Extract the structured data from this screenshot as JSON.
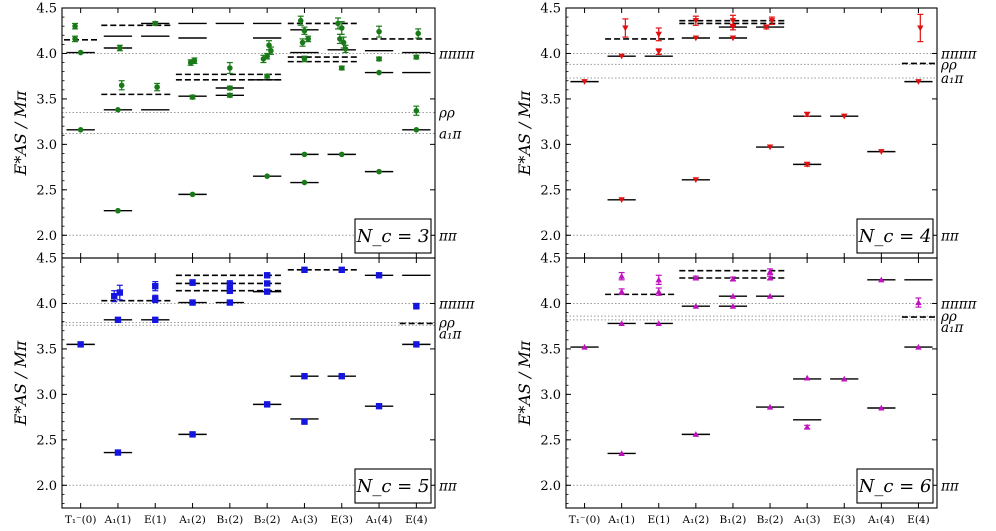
{
  "figure": {
    "ylabel": "E*AS / Mπ",
    "ytick_labels": [
      "2.0",
      "2.5",
      "3.0",
      "3.5",
      "4.0",
      "4.5"
    ],
    "x_categories": [
      "T₁⁻(0)",
      "A₁(1)",
      "E(1)",
      "A₁(2)",
      "B₁(2)",
      "B₂(2)",
      "A₁(3)",
      "E(3)",
      "A₁(4)",
      "E(4)"
    ]
  },
  "chart_data": [
    {
      "type": "scatter",
      "panel": "Nc=3",
      "legend": "N_c = 3",
      "color": "#1a7a1a",
      "marker": "circle",
      "ylim": [
        1.75,
        4.5
      ],
      "ref_lines": [
        {
          "label": "ππππ",
          "value": 4.0
        },
        {
          "label": "ρρ",
          "value": 3.35
        },
        {
          "label": "a₁π",
          "value": 3.12
        },
        {
          "label": "ππ",
          "value": 2.0
        }
      ],
      "levels": [
        {
          "x": 0,
          "y": 4.01
        },
        {
          "x": 0,
          "y": 3.16
        },
        {
          "x": 1,
          "y": 4.19
        },
        {
          "x": 1,
          "y": 4.06
        },
        {
          "x": 1,
          "y": 3.38
        },
        {
          "x": 1,
          "y": 2.27
        },
        {
          "x": 2,
          "y": 4.33
        },
        {
          "x": 2,
          "y": 4.19
        },
        {
          "x": 2,
          "y": 3.38
        },
        {
          "x": 3,
          "y": 4.33
        },
        {
          "x": 3,
          "y": 4.17
        },
        {
          "x": 3,
          "y": 3.53
        },
        {
          "x": 3,
          "y": 2.45
        },
        {
          "x": 4,
          "y": 4.33
        },
        {
          "x": 4,
          "y": 3.62
        },
        {
          "x": 4,
          "y": 3.54
        },
        {
          "x": 5,
          "y": 4.33
        },
        {
          "x": 5,
          "y": 4.17
        },
        {
          "x": 5,
          "y": 3.71
        },
        {
          "x": 5,
          "y": 2.65
        },
        {
          "x": 6,
          "y": 4.26
        },
        {
          "x": 6,
          "y": 4.01
        },
        {
          "x": 6,
          "y": 2.89
        },
        {
          "x": 6,
          "y": 2.58
        },
        {
          "x": 7,
          "y": 4.04
        },
        {
          "x": 7,
          "y": 2.89
        },
        {
          "x": 8,
          "y": 4.03
        },
        {
          "x": 8,
          "y": 3.79
        },
        {
          "x": 8,
          "y": 2.7
        },
        {
          "x": 9,
          "y": 4.01
        },
        {
          "x": 9,
          "y": 3.79
        },
        {
          "x": 9,
          "y": 3.16
        }
      ],
      "dashed_levels": [
        {
          "x0": 0,
          "x1": 1,
          "y": 4.15
        },
        {
          "x0": 1,
          "x1": 3,
          "y": 4.31
        },
        {
          "x0": 1,
          "x1": 3,
          "y": 3.55
        },
        {
          "x0": 3,
          "x1": 6,
          "y": 3.77
        },
        {
          "x0": 3,
          "x1": 6,
          "y": 3.71
        },
        {
          "x0": 6,
          "x1": 8,
          "y": 4.33
        },
        {
          "x0": 6,
          "x1": 8,
          "y": 3.96
        },
        {
          "x0": 6,
          "x1": 8,
          "y": 3.91
        },
        {
          "x0": 8,
          "x1": 10,
          "y": 4.16
        }
      ],
      "points": [
        {
          "x": -0.15,
          "y": 4.3,
          "err": 0.03
        },
        {
          "x": -0.15,
          "y": 4.16,
          "err": 0.03
        },
        {
          "x": 0,
          "y": 4.01,
          "err": 0.01
        },
        {
          "x": 0,
          "y": 3.16,
          "err": 0.01
        },
        {
          "x": 1.1,
          "y": 3.65,
          "err": 0.05
        },
        {
          "x": 1,
          "y": 3.38,
          "err": 0.01
        },
        {
          "x": 1,
          "y": 2.27,
          "err": 0.01
        },
        {
          "x": 1.05,
          "y": 4.06,
          "err": 0.03
        },
        {
          "x": 2,
          "y": 4.33,
          "err": 0.02
        },
        {
          "x": 2.05,
          "y": 3.63,
          "err": 0.04
        },
        {
          "x": 2.95,
          "y": 3.9,
          "err": 0.03
        },
        {
          "x": 3.05,
          "y": 3.92,
          "err": 0.03
        },
        {
          "x": 3,
          "y": 3.52,
          "err": 0.02
        },
        {
          "x": 3,
          "y": 2.45,
          "err": 0.01
        },
        {
          "x": 4,
          "y": 3.84,
          "err": 0.06
        },
        {
          "x": 4,
          "y": 3.62,
          "err": 0.02
        },
        {
          "x": 4,
          "y": 3.54,
          "err": 0.02
        },
        {
          "x": 4.9,
          "y": 3.94,
          "err": 0.04
        },
        {
          "x": 5.05,
          "y": 4.09,
          "err": 0.05
        },
        {
          "x": 5.1,
          "y": 4.03,
          "err": 0.04
        },
        {
          "x": 5,
          "y": 3.97,
          "err": 0.03
        },
        {
          "x": 5,
          "y": 3.75,
          "err": 0.02
        },
        {
          "x": 5,
          "y": 2.65,
          "err": 0.01
        },
        {
          "x": 5.9,
          "y": 4.36,
          "err": 0.05
        },
        {
          "x": 6,
          "y": 4.25,
          "err": 0.04
        },
        {
          "x": 5.95,
          "y": 4.12,
          "err": 0.04
        },
        {
          "x": 6.1,
          "y": 4.16,
          "err": 0.03
        },
        {
          "x": 6,
          "y": 3.94,
          "err": 0.03
        },
        {
          "x": 6,
          "y": 2.89,
          "err": 0.01
        },
        {
          "x": 6,
          "y": 2.58,
          "err": 0.01
        },
        {
          "x": 6.9,
          "y": 4.33,
          "err": 0.06
        },
        {
          "x": 7,
          "y": 4.28,
          "err": 0.07
        },
        {
          "x": 6.95,
          "y": 4.16,
          "err": 0.05
        },
        {
          "x": 7.05,
          "y": 4.12,
          "err": 0.06
        },
        {
          "x": 7.1,
          "y": 4.05,
          "err": 0.04
        },
        {
          "x": 7,
          "y": 3.84,
          "err": 0.02
        },
        {
          "x": 7,
          "y": 2.89,
          "err": 0.01
        },
        {
          "x": 8,
          "y": 4.24,
          "err": 0.06
        },
        {
          "x": 8,
          "y": 3.94,
          "err": 0.02
        },
        {
          "x": 8,
          "y": 3.79,
          "err": 0.01
        },
        {
          "x": 8,
          "y": 2.7,
          "err": 0.01
        },
        {
          "x": 9.05,
          "y": 4.22,
          "err": 0.05
        },
        {
          "x": 9,
          "y": 3.96,
          "err": 0.02
        },
        {
          "x": 9,
          "y": 3.37,
          "err": 0.05
        },
        {
          "x": 9,
          "y": 3.16,
          "err": 0.01
        }
      ]
    },
    {
      "type": "scatter",
      "panel": "Nc=4",
      "legend": "N_c = 4",
      "color": "#e01010",
      "marker": "triangle-down",
      "ylim": [
        1.75,
        4.5
      ],
      "ref_lines": [
        {
          "label": "ππππ",
          "value": 4.0
        },
        {
          "label": "ρρ",
          "value": 3.88
        },
        {
          "label": "a₁π",
          "value": 3.73
        },
        {
          "label": "ππ",
          "value": 2.0
        }
      ],
      "levels": [
        {
          "x": 0,
          "y": 3.69
        },
        {
          "x": 1,
          "y": 3.97
        },
        {
          "x": 1,
          "y": 2.39
        },
        {
          "x": 2,
          "y": 3.97
        },
        {
          "x": 3,
          "y": 4.17
        },
        {
          "x": 3,
          "y": 2.61
        },
        {
          "x": 4,
          "y": 4.17
        },
        {
          "x": 4,
          "y": 4.29
        },
        {
          "x": 5,
          "y": 4.29
        },
        {
          "x": 5,
          "y": 2.97
        },
        {
          "x": 6,
          "y": 3.31
        },
        {
          "x": 6,
          "y": 2.78
        },
        {
          "x": 7,
          "y": 3.31
        },
        {
          "x": 8,
          "y": 2.92
        },
        {
          "x": 9,
          "y": 3.69
        }
      ],
      "dashed_levels": [
        {
          "x0": 1,
          "x1": 3,
          "y": 4.16
        },
        {
          "x0": 3,
          "x1": 6,
          "y": 4.36
        },
        {
          "x0": 3,
          "x1": 6,
          "y": 4.33
        },
        {
          "x0": 9,
          "x1": 10,
          "y": 3.89
        }
      ],
      "points": [
        {
          "x": 0,
          "y": 3.69,
          "err": 0.01
        },
        {
          "x": 1.1,
          "y": 4.28,
          "err": 0.1
        },
        {
          "x": 1,
          "y": 3.97,
          "err": 0.01
        },
        {
          "x": 1,
          "y": 2.39,
          "err": 0.01
        },
        {
          "x": 2,
          "y": 4.21,
          "err": 0.07
        },
        {
          "x": 2,
          "y": 4.02,
          "err": 0.03
        },
        {
          "x": 3,
          "y": 4.36,
          "err": 0.05
        },
        {
          "x": 3,
          "y": 4.17,
          "err": 0.01
        },
        {
          "x": 3,
          "y": 2.61,
          "err": 0.01
        },
        {
          "x": 4,
          "y": 4.36,
          "err": 0.06
        },
        {
          "x": 4,
          "y": 4.29,
          "err": 0.03
        },
        {
          "x": 4,
          "y": 4.17,
          "err": 0.01
        },
        {
          "x": 4.9,
          "y": 4.29,
          "err": 0.02
        },
        {
          "x": 5.05,
          "y": 4.36,
          "err": 0.04
        },
        {
          "x": 5,
          "y": 2.97,
          "err": 0.01
        },
        {
          "x": 6,
          "y": 3.33,
          "err": 0.02
        },
        {
          "x": 6,
          "y": 2.78,
          "err": 0.02
        },
        {
          "x": 7,
          "y": 3.31,
          "err": 0.01
        },
        {
          "x": 8,
          "y": 2.92,
          "err": 0.01
        },
        {
          "x": 9.05,
          "y": 4.28,
          "err": 0.15
        },
        {
          "x": 9,
          "y": 3.69,
          "err": 0.01
        }
      ]
    },
    {
      "type": "scatter",
      "panel": "Nc=5",
      "legend": "N_c = 5",
      "color": "#1515e0",
      "marker": "square",
      "ylim": [
        1.75,
        4.5
      ],
      "ref_lines": [
        {
          "label": "ππππ",
          "value": 4.0
        },
        {
          "label": "ρρ",
          "value": 3.79
        },
        {
          "label": "a₁π",
          "value": 3.76
        },
        {
          "label": "ππ",
          "value": 2.0
        }
      ],
      "levels": [
        {
          "x": 0,
          "y": 3.55
        },
        {
          "x": 1,
          "y": 3.82
        },
        {
          "x": 1,
          "y": 2.36
        },
        {
          "x": 2,
          "y": 3.82
        },
        {
          "x": 3,
          "y": 4.01
        },
        {
          "x": 3,
          "y": 2.56
        },
        {
          "x": 4,
          "y": 4.01
        },
        {
          "x": 5,
          "y": 4.13
        },
        {
          "x": 5,
          "y": 2.89
        },
        {
          "x": 6,
          "y": 3.2
        },
        {
          "x": 6,
          "y": 2.73
        },
        {
          "x": 7,
          "y": 3.2
        },
        {
          "x": 8,
          "y": 4.31
        },
        {
          "x": 8,
          "y": 2.87
        },
        {
          "x": 9,
          "y": 4.31
        },
        {
          "x": 9,
          "y": 3.55
        }
      ],
      "dashed_levels": [
        {
          "x0": 1,
          "x1": 3,
          "y": 4.03
        },
        {
          "x0": 3,
          "x1": 6,
          "y": 4.31
        },
        {
          "x0": 3,
          "x1": 6,
          "y": 4.22
        },
        {
          "x0": 3,
          "x1": 6,
          "y": 4.14
        },
        {
          "x0": 6,
          "x1": 8,
          "y": 4.37
        },
        {
          "x0": 9,
          "x1": 10,
          "y": 3.78
        }
      ],
      "points": [
        {
          "x": 0,
          "y": 3.55,
          "err": 0.01
        },
        {
          "x": 0.9,
          "y": 4.08,
          "err": 0.06
        },
        {
          "x": 1.05,
          "y": 4.12,
          "err": 0.08
        },
        {
          "x": 1,
          "y": 3.82,
          "err": 0.01
        },
        {
          "x": 1,
          "y": 2.36,
          "err": 0.01
        },
        {
          "x": 2,
          "y": 4.19,
          "err": 0.05
        },
        {
          "x": 2,
          "y": 4.05,
          "err": 0.04
        },
        {
          "x": 2,
          "y": 3.82,
          "err": 0.01
        },
        {
          "x": 3,
          "y": 4.23,
          "err": 0.03
        },
        {
          "x": 3,
          "y": 4.01,
          "err": 0.01
        },
        {
          "x": 3,
          "y": 2.56,
          "err": 0.01
        },
        {
          "x": 4,
          "y": 4.21,
          "err": 0.04
        },
        {
          "x": 4,
          "y": 4.14,
          "err": 0.03
        },
        {
          "x": 4,
          "y": 4.01,
          "err": 0.01
        },
        {
          "x": 5,
          "y": 4.31,
          "err": 0.02
        },
        {
          "x": 5,
          "y": 4.22,
          "err": 0.02
        },
        {
          "x": 5,
          "y": 4.13,
          "err": 0.01
        },
        {
          "x": 5,
          "y": 2.89,
          "err": 0.01
        },
        {
          "x": 6,
          "y": 4.37,
          "err": 0.01
        },
        {
          "x": 6,
          "y": 3.2,
          "err": 0.01
        },
        {
          "x": 6,
          "y": 2.7,
          "err": 0.02
        },
        {
          "x": 7,
          "y": 4.37,
          "err": 0.01
        },
        {
          "x": 7,
          "y": 3.2,
          "err": 0.01
        },
        {
          "x": 8,
          "y": 4.31,
          "err": 0.01
        },
        {
          "x": 8,
          "y": 2.87,
          "err": 0.01
        },
        {
          "x": 9,
          "y": 3.97,
          "err": 0.03
        },
        {
          "x": 9,
          "y": 3.55,
          "err": 0.01
        }
      ]
    },
    {
      "type": "scatter",
      "panel": "Nc=6",
      "legend": "N_c = 6",
      "color": "#c010c0",
      "marker": "triangle-up",
      "ylim": [
        1.75,
        4.5
      ],
      "ref_lines": [
        {
          "label": "ππππ",
          "value": 4.0
        },
        {
          "label": "ρρ",
          "value": 3.86
        },
        {
          "label": "a₁π",
          "value": 3.82
        },
        {
          "label": "ππ",
          "value": 2.0
        }
      ],
      "levels": [
        {
          "x": 0,
          "y": 3.52
        },
        {
          "x": 1,
          "y": 3.78
        },
        {
          "x": 1,
          "y": 2.35
        },
        {
          "x": 2,
          "y": 3.78
        },
        {
          "x": 3,
          "y": 3.97
        },
        {
          "x": 3,
          "y": 2.56
        },
        {
          "x": 4,
          "y": 3.97
        },
        {
          "x": 4,
          "y": 4.08
        },
        {
          "x": 5,
          "y": 4.08
        },
        {
          "x": 5,
          "y": 2.86
        },
        {
          "x": 6,
          "y": 3.17
        },
        {
          "x": 6,
          "y": 2.72
        },
        {
          "x": 7,
          "y": 3.17
        },
        {
          "x": 8,
          "y": 4.26
        },
        {
          "x": 8,
          "y": 2.85
        },
        {
          "x": 9,
          "y": 4.26
        },
        {
          "x": 9,
          "y": 3.52
        }
      ],
      "dashed_levels": [
        {
          "x0": 1,
          "x1": 3,
          "y": 4.1
        },
        {
          "x0": 3,
          "x1": 6,
          "y": 4.36
        },
        {
          "x0": 3,
          "x1": 6,
          "y": 4.28
        },
        {
          "x0": 9,
          "x1": 10,
          "y": 3.85
        }
      ],
      "points": [
        {
          "x": 0,
          "y": 3.52,
          "err": 0.01
        },
        {
          "x": 1,
          "y": 4.3,
          "err": 0.04
        },
        {
          "x": 1,
          "y": 4.13,
          "err": 0.03
        },
        {
          "x": 1,
          "y": 3.78,
          "err": 0.01
        },
        {
          "x": 1,
          "y": 2.35,
          "err": 0.01
        },
        {
          "x": 2,
          "y": 4.26,
          "err": 0.05
        },
        {
          "x": 2,
          "y": 4.13,
          "err": 0.04
        },
        {
          "x": 2,
          "y": 3.78,
          "err": 0.01
        },
        {
          "x": 3,
          "y": 4.28,
          "err": 0.02
        },
        {
          "x": 3,
          "y": 3.97,
          "err": 0.01
        },
        {
          "x": 3,
          "y": 2.56,
          "err": 0.01
        },
        {
          "x": 4,
          "y": 4.27,
          "err": 0.02
        },
        {
          "x": 4,
          "y": 4.08,
          "err": 0.01
        },
        {
          "x": 4,
          "y": 3.97,
          "err": 0.01
        },
        {
          "x": 5,
          "y": 4.35,
          "err": 0.03
        },
        {
          "x": 5,
          "y": 4.28,
          "err": 0.02
        },
        {
          "x": 5,
          "y": 4.08,
          "err": 0.01
        },
        {
          "x": 5,
          "y": 2.86,
          "err": 0.01
        },
        {
          "x": 6,
          "y": 3.18,
          "err": 0.01
        },
        {
          "x": 6,
          "y": 2.64,
          "err": 0.02
        },
        {
          "x": 7,
          "y": 3.17,
          "err": 0.01
        },
        {
          "x": 8,
          "y": 4.26,
          "err": 0.01
        },
        {
          "x": 8,
          "y": 2.85,
          "err": 0.01
        },
        {
          "x": 9,
          "y": 4.01,
          "err": 0.05
        },
        {
          "x": 9,
          "y": 3.52,
          "err": 0.01
        }
      ]
    }
  ]
}
